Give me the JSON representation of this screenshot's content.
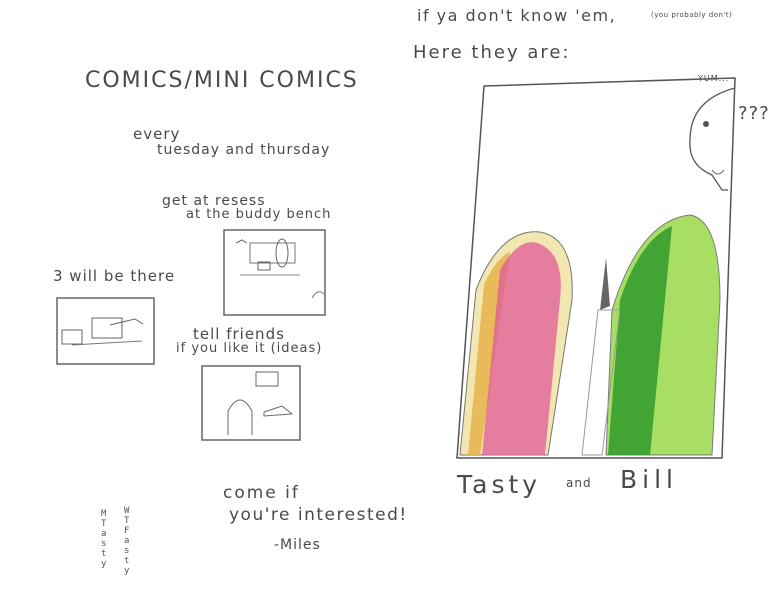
{
  "left_page": {
    "title": "COMICS/MINI COMICS",
    "schedule_line1": "every",
    "schedule_line2": "tuesday and thursday",
    "location_line1": "get at resess",
    "location_line2": "at the buddy bench",
    "three_will_be": "3 will be there",
    "tell_friends": "tell friends",
    "if_you_like": "if you like it (ideas)",
    "come_line1": "come if",
    "come_line2": "you're interested!",
    "signature": "-Miles",
    "weekday_letters_left": [
      "M",
      "T",
      "a",
      "s",
      "t",
      "y"
    ],
    "weekday_letters_right": [
      "W",
      "T",
      "F",
      "a",
      "s",
      "t",
      "y"
    ]
  },
  "right_page": {
    "intro_line": "if ya don't know 'em,",
    "intro_aside": "(you probably don't)",
    "here_they_are": "Here they are:",
    "yum": "YUM...",
    "confused": "???",
    "name_left": "Tasty",
    "and": "and",
    "name_right": "Bill"
  },
  "colors": {
    "pencil": "#4a4a4a",
    "pink": "#e05a9a",
    "orange": "#e6b24a",
    "green_dark": "#2f9a2a",
    "green_light": "#9ad94a"
  }
}
